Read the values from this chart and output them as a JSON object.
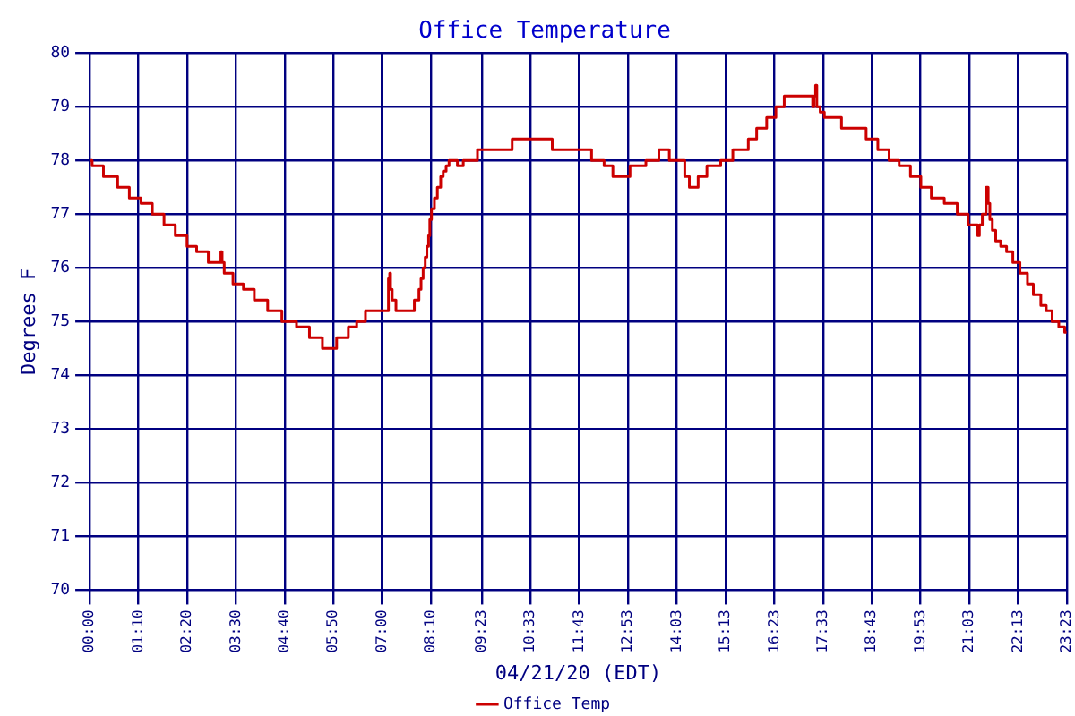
{
  "chart_data": {
    "type": "step",
    "title": "Office Temperature",
    "xlabel": "04/21/20 (EDT)",
    "ylabel": "Degrees F",
    "x": [
      0,
      0.06,
      0.33,
      0.67,
      0.95,
      1.23,
      1.5,
      1.78,
      2.05,
      2.33,
      2.56,
      2.84,
      3.14,
      3.17,
      3.22,
      3.43,
      3.68,
      3.94,
      4.26,
      4.6,
      4.95,
      5.26,
      5.57,
      5.91,
      6.19,
      6.39,
      6.6,
      7.15,
      7.18,
      7.2,
      7.24,
      7.33,
      7.77,
      7.88,
      7.93,
      7.98,
      8.03,
      8.07,
      8.11,
      8.14,
      8.18,
      8.25,
      8.32,
      8.4,
      8.46,
      8.53,
      8.6,
      8.8,
      8.94,
      9.28,
      10.11,
      11.07,
      12.01,
      12.31,
      12.52,
      12.93,
      13.31,
      13.62,
      13.87,
      14.24,
      14.35,
      14.56,
      14.77,
      15.1,
      15.39,
      15.76,
      15.96,
      16.2,
      16.42,
      16.62,
      17.3,
      17.33,
      17.37,
      17.4,
      17.48,
      17.58,
      17.99,
      18.58,
      18.86,
      19.13,
      19.37,
      19.64,
      19.89,
      20.14,
      20.45,
      20.76,
      21.02,
      21.25,
      21.29,
      21.36,
      21.45,
      21.5,
      21.54,
      21.6,
      21.68,
      21.8,
      21.94,
      22.09,
      22.26,
      22.44,
      22.58,
      22.76,
      22.89,
      23.03,
      23.19,
      23.33,
      23.38
    ],
    "series": [
      {
        "name": "Office Temp",
        "color": "#cc0000",
        "values": [
          78.0,
          77.9,
          77.7,
          77.5,
          77.3,
          77.2,
          77.0,
          76.8,
          76.6,
          76.4,
          76.3,
          76.1,
          76.3,
          76.1,
          75.9,
          75.7,
          75.6,
          75.4,
          75.2,
          75.0,
          74.9,
          74.7,
          74.5,
          74.7,
          74.9,
          75.0,
          75.2,
          75.8,
          75.9,
          75.6,
          75.4,
          75.2,
          75.4,
          75.6,
          75.8,
          76.0,
          76.2,
          76.4,
          76.6,
          76.9,
          77.1,
          77.3,
          77.5,
          77.7,
          77.8,
          77.9,
          78.0,
          77.9,
          78.0,
          78.2,
          78.4,
          78.2,
          78.0,
          77.9,
          77.7,
          77.9,
          78.0,
          78.2,
          78.0,
          77.7,
          77.5,
          77.7,
          77.9,
          78.0,
          78.2,
          78.4,
          78.6,
          78.8,
          79.0,
          79.2,
          79.0,
          79.2,
          79.4,
          79.0,
          78.9,
          78.8,
          78.6,
          78.4,
          78.2,
          78.0,
          77.9,
          77.7,
          77.5,
          77.3,
          77.2,
          77.0,
          76.8,
          76.6,
          76.8,
          77.0,
          77.5,
          77.2,
          76.9,
          76.7,
          76.5,
          76.4,
          76.3,
          76.1,
          75.9,
          75.7,
          75.5,
          75.3,
          75.2,
          75.0,
          74.9,
          74.8,
          74.8
        ]
      }
    ],
    "xlim": [
      0,
      23.38
    ],
    "xticks": [
      {
        "value": 0,
        "label": "00:00"
      },
      {
        "value": 1.167,
        "label": "01:10"
      },
      {
        "value": 2.333,
        "label": "02:20"
      },
      {
        "value": 3.5,
        "label": "03:30"
      },
      {
        "value": 4.667,
        "label": "04:40"
      },
      {
        "value": 5.833,
        "label": "05:50"
      },
      {
        "value": 7.0,
        "label": "07:00"
      },
      {
        "value": 8.167,
        "label": "08:10"
      },
      {
        "value": 9.383,
        "label": "09:23"
      },
      {
        "value": 10.55,
        "label": "10:33"
      },
      {
        "value": 11.717,
        "label": "11:43"
      },
      {
        "value": 12.883,
        "label": "12:53"
      },
      {
        "value": 14.05,
        "label": "14:03"
      },
      {
        "value": 15.217,
        "label": "15:13"
      },
      {
        "value": 16.383,
        "label": "16:23"
      },
      {
        "value": 17.55,
        "label": "17:33"
      },
      {
        "value": 18.717,
        "label": "18:43"
      },
      {
        "value": 19.883,
        "label": "19:53"
      },
      {
        "value": 21.05,
        "label": "21:03"
      },
      {
        "value": 22.217,
        "label": "22:13"
      },
      {
        "value": 23.38,
        "label": "23:23"
      }
    ],
    "ylim": [
      70,
      80
    ],
    "yticks": [
      70,
      71,
      72,
      73,
      74,
      75,
      76,
      77,
      78,
      79,
      80
    ],
    "grid": true,
    "legend": "bottom",
    "marker": "none",
    "line_style": "solid"
  }
}
